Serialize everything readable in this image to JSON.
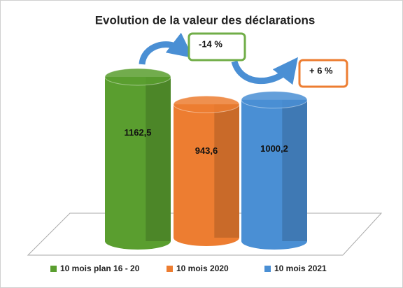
{
  "chart_data": {
    "type": "bar",
    "title": "Evolution de la valeur des déclarations",
    "series": [
      {
        "name": "10 mois plan 16 - 20",
        "color": "#5a9e2f",
        "values": [
          1162.5
        ],
        "value_labels": [
          "1162,5"
        ]
      },
      {
        "name": "10 mois 2020",
        "color": "#ed7d31",
        "values": [
          943.6
        ],
        "value_labels": [
          "943,6"
        ]
      },
      {
        "name": "10 mois 2021",
        "color": "#4a8fd4",
        "values": [
          1000.2
        ],
        "value_labels": [
          "1000,2"
        ]
      }
    ],
    "annotations": [
      {
        "text": "-14 %",
        "color": "#70ad47"
      },
      {
        "text": "+ 6 %",
        "color": "#ed7d31"
      }
    ]
  }
}
